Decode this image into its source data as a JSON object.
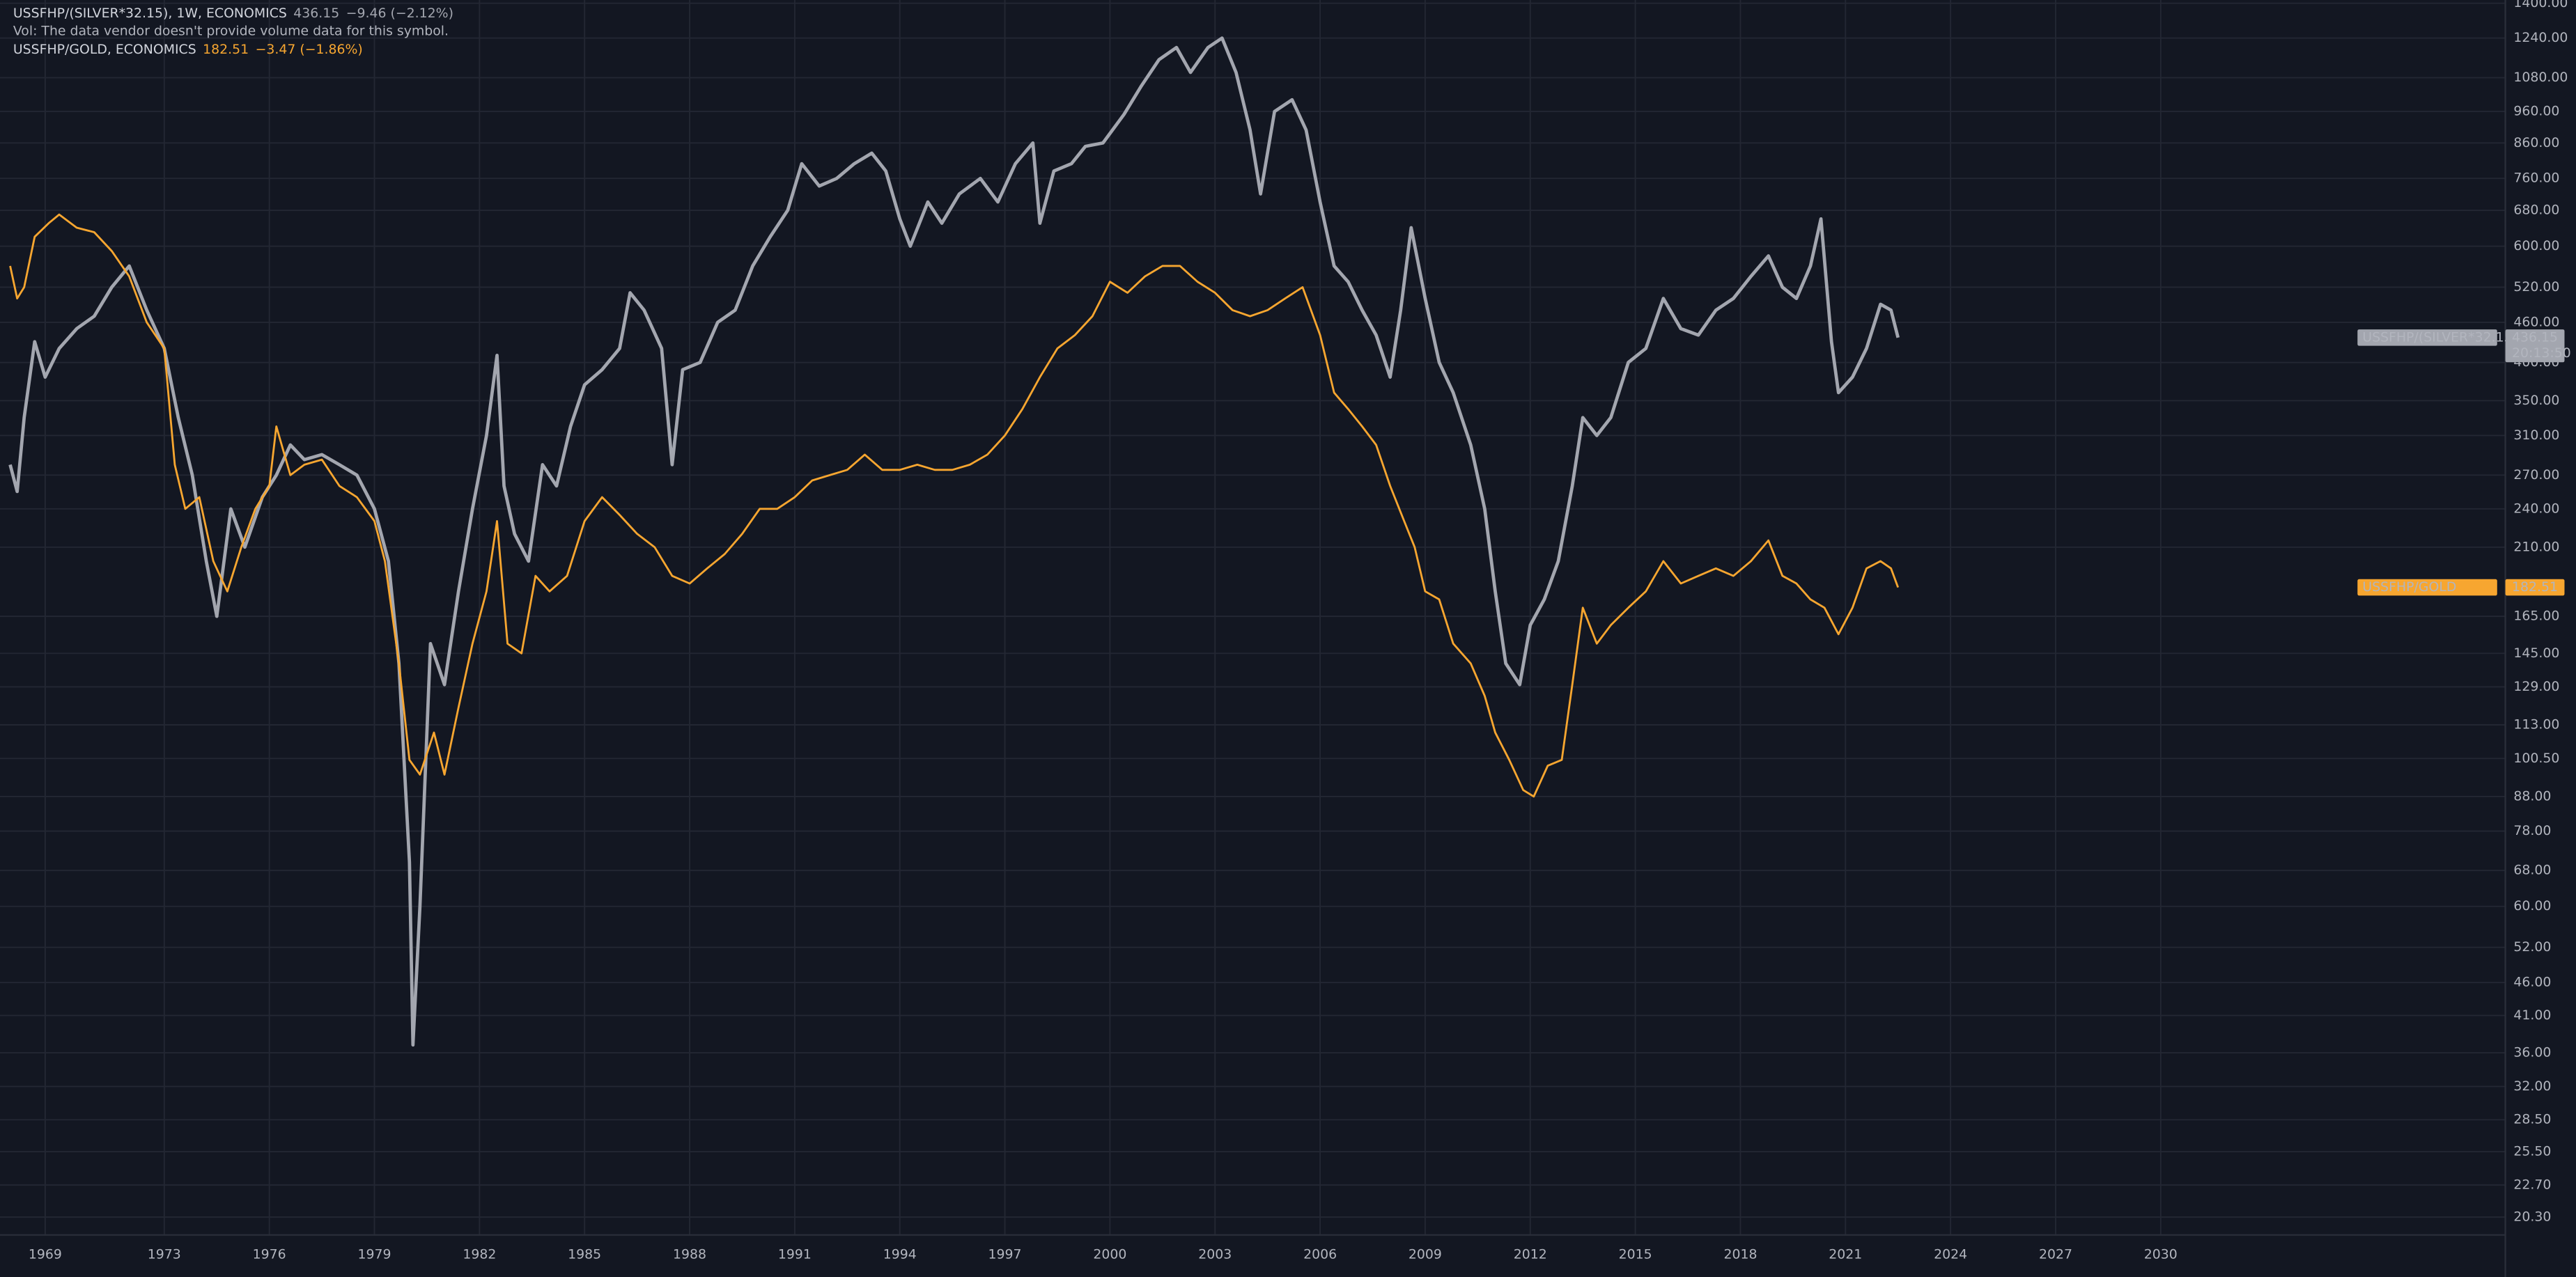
{
  "chart_data": {
    "type": "line",
    "log_scale": true,
    "grid": true,
    "header": {
      "vol_note": "Vol: The data vendor doesn't provide volume data for this symbol."
    },
    "xlim": [
      1968.31,
      2039.84
    ],
    "xticks": [
      {
        "value": 1969.6,
        "label": "1969"
      },
      1973,
      1976,
      1979,
      1982,
      1985,
      1988,
      1991,
      1994,
      1997,
      2000,
      2003,
      2006,
      2009,
      2012,
      2015,
      2018,
      2021,
      2024,
      2027,
      2030
    ],
    "ylim": [
      19.07,
      1416
    ],
    "yticks": [
      {
        "value": 20.3,
        "label": "20.30"
      },
      {
        "value": 22.7,
        "label": "22.70"
      },
      {
        "value": 25.5,
        "label": "25.50"
      },
      {
        "value": 28.5,
        "label": "28.50"
      },
      {
        "value": 32,
        "label": "32.00"
      },
      {
        "value": 36,
        "label": "36.00"
      },
      {
        "value": 41,
        "label": "41.00"
      },
      {
        "value": 46,
        "label": "46.00"
      },
      {
        "value": 52,
        "label": "52.00"
      },
      {
        "value": 60,
        "label": "60.00"
      },
      {
        "value": 68,
        "label": "68.00"
      },
      {
        "value": 78,
        "label": "78.00"
      },
      {
        "value": 88,
        "label": "88.00"
      },
      {
        "value": 100.5,
        "label": "100.50"
      },
      {
        "value": 113,
        "label": "113.00"
      },
      {
        "value": 129,
        "label": "129.00"
      },
      {
        "value": 145,
        "label": "145.00"
      },
      {
        "value": 165,
        "label": "165.00"
      },
      {
        "value": 210,
        "label": "210.00"
      },
      {
        "value": 240,
        "label": "240.00"
      },
      {
        "value": 270,
        "label": "270.00"
      },
      {
        "value": 310,
        "label": "310.00"
      },
      {
        "value": 350,
        "label": "350.00"
      },
      {
        "value": 400,
        "label": "400.00"
      },
      {
        "value": 460,
        "label": "460.00"
      },
      {
        "value": 520,
        "label": "520.00"
      },
      {
        "value": 600,
        "label": "600.00"
      },
      {
        "value": 680,
        "label": "680.00"
      },
      {
        "value": 760,
        "label": "760.00"
      },
      {
        "value": 860,
        "label": "860.00"
      },
      {
        "value": 960,
        "label": "960.00"
      },
      {
        "value": 1080,
        "label": "1080.00"
      },
      {
        "value": 1240,
        "label": "1240.00"
      },
      {
        "value": 1400,
        "label": "1400.00"
      }
    ],
    "series": [
      {
        "name": "USSFHP/(SILVER*32.15)",
        "legend_label": "USSFHP/(SILVER*32.15), 1W, ECONOMICS",
        "change": "−9.46 (−2.12%)",
        "countdown": "20:13:50",
        "color": "#a3a6af",
        "x": [
          1968.6,
          1968.8,
          1969.0,
          1969.3,
          1969.6,
          1970.0,
          1970.5,
          1971.0,
          1971.5,
          1972.0,
          1972.5,
          1973.0,
          1973.4,
          1973.8,
          1974.2,
          1974.5,
          1974.9,
          1975.3,
          1975.8,
          1976.2,
          1976.6,
          1977.0,
          1977.5,
          1978.0,
          1978.5,
          1979.0,
          1979.4,
          1979.7,
          1980.0,
          1980.1,
          1980.3,
          1980.6,
          1981.0,
          1981.4,
          1981.8,
          1982.2,
          1982.5,
          1982.7,
          1983.0,
          1983.4,
          1983.8,
          1984.2,
          1984.6,
          1985.0,
          1985.5,
          1986.0,
          1986.3,
          1986.7,
          1987.2,
          1987.5,
          1987.8,
          1988.3,
          1988.8,
          1989.3,
          1989.8,
          1990.3,
          1990.8,
          1991.2,
          1991.7,
          1992.2,
          1992.7,
          1993.2,
          1993.6,
          1994.0,
          1994.3,
          1994.8,
          1995.2,
          1995.7,
          1996.3,
          1996.8,
          1997.3,
          1997.8,
          1998.0,
          1998.4,
          1998.9,
          1999.3,
          1999.8,
          2000.4,
          2000.9,
          2001.4,
          2001.9,
          2002.3,
          2002.8,
          2003.2,
          2003.6,
          2004.0,
          2004.3,
          2004.7,
          2005.2,
          2005.6,
          2006.0,
          2006.4,
          2006.8,
          2007.2,
          2007.6,
          2008.0,
          2008.3,
          2008.6,
          2009.0,
          2009.4,
          2009.8,
          2010.3,
          2010.7,
          2011.0,
          2011.3,
          2011.7,
          2012.0,
          2012.4,
          2012.8,
          2013.2,
          2013.5,
          2013.9,
          2014.3,
          2014.8,
          2015.3,
          2015.8,
          2016.3,
          2016.8,
          2017.3,
          2017.8,
          2018.3,
          2018.8,
          2019.2,
          2019.6,
          2020.0,
          2020.3,
          2020.6,
          2020.8,
          2021.2,
          2021.6,
          2022.0,
          2022.3,
          2022.5
        ],
        "values": [
          280,
          255,
          330,
          430,
          380,
          420,
          450,
          470,
          520,
          560,
          480,
          420,
          330,
          270,
          200,
          165,
          240,
          210,
          250,
          270,
          300,
          285,
          290,
          280,
          270,
          240,
          200,
          140,
          70,
          37,
          60,
          150,
          130,
          180,
          240,
          310,
          410,
          260,
          220,
          200,
          280,
          260,
          320,
          370,
          390,
          420,
          510,
          480,
          420,
          280,
          390,
          400,
          460,
          480,
          560,
          620,
          680,
          800,
          740,
          760,
          800,
          830,
          780,
          660,
          600,
          700,
          650,
          720,
          760,
          700,
          800,
          860,
          650,
          780,
          800,
          850,
          860,
          950,
          1050,
          1150,
          1200,
          1100,
          1200,
          1240,
          1100,
          900,
          720,
          960,
          1000,
          900,
          700,
          560,
          530,
          480,
          440,
          380,
          480,
          640,
          500,
          400,
          360,
          300,
          240,
          180,
          140,
          130,
          160,
          175,
          200,
          260,
          330,
          310,
          330,
          400,
          420,
          500,
          450,
          440,
          480,
          500,
          540,
          580,
          520,
          500,
          560,
          660,
          430,
          360,
          380,
          420,
          490,
          480,
          436.15
        ]
      },
      {
        "name": "USSFHP/GOLD",
        "legend_label": "USSFHP/GOLD, ECONOMICS",
        "change": "−3.47 (−1.86%)",
        "color": "#f7a630",
        "x": [
          1968.6,
          1968.8,
          1969.0,
          1969.3,
          1969.7,
          1970.0,
          1970.5,
          1971.0,
          1971.5,
          1972.0,
          1972.5,
          1973.0,
          1973.3,
          1973.6,
          1974.0,
          1974.4,
          1974.8,
          1975.2,
          1975.6,
          1976.0,
          1976.2,
          1976.6,
          1977.0,
          1977.5,
          1978.0,
          1978.5,
          1979.0,
          1979.3,
          1979.7,
          1980.0,
          1980.3,
          1980.7,
          1981.0,
          1981.4,
          1981.8,
          1982.2,
          1982.5,
          1982.8,
          1983.2,
          1983.6,
          1984.0,
          1984.5,
          1985.0,
          1985.5,
          1986.0,
          1986.5,
          1987.0,
          1987.5,
          1988.0,
          1988.5,
          1989.0,
          1989.5,
          1990.0,
          1990.5,
          1991.0,
          1991.5,
          1992.0,
          1992.5,
          1993.0,
          1993.5,
          1994.0,
          1994.5,
          1995.0,
          1995.5,
          1996.0,
          1996.5,
          1997.0,
          1997.5,
          1998.0,
          1998.5,
          1999.0,
          1999.5,
          2000.0,
          2000.5,
          2001.0,
          2001.5,
          2002.0,
          2002.5,
          2003.0,
          2003.5,
          2004.0,
          2004.5,
          2005.0,
          2005.5,
          2006.0,
          2006.4,
          2006.8,
          2007.2,
          2007.6,
          2008.0,
          2008.4,
          2008.7,
          2009.0,
          2009.4,
          2009.8,
          2010.3,
          2010.7,
          2011.0,
          2011.4,
          2011.8,
          2012.1,
          2012.5,
          2012.9,
          2013.2,
          2013.5,
          2013.9,
          2014.3,
          2014.8,
          2015.3,
          2015.8,
          2016.3,
          2016.8,
          2017.3,
          2017.8,
          2018.3,
          2018.8,
          2019.2,
          2019.6,
          2020.0,
          2020.4,
          2020.8,
          2021.2,
          2021.6,
          2022.0,
          2022.3,
          2022.5
        ],
        "values": [
          560,
          500,
          520,
          620,
          650,
          670,
          640,
          630,
          590,
          540,
          460,
          420,
          280,
          240,
          250,
          200,
          180,
          210,
          240,
          260,
          320,
          270,
          280,
          285,
          260,
          250,
          230,
          200,
          140,
          100,
          95,
          110,
          95,
          120,
          150,
          180,
          230,
          150,
          145,
          190,
          180,
          190,
          230,
          250,
          235,
          220,
          210,
          190,
          185,
          195,
          205,
          220,
          240,
          240,
          250,
          265,
          270,
          275,
          290,
          275,
          275,
          280,
          275,
          275,
          280,
          290,
          310,
          340,
          380,
          420,
          440,
          470,
          530,
          510,
          540,
          560,
          560,
          530,
          510,
          480,
          470,
          480,
          500,
          520,
          440,
          360,
          340,
          320,
          300,
          260,
          230,
          210,
          180,
          175,
          150,
          140,
          125,
          110,
          100,
          90,
          88,
          98,
          100,
          130,
          170,
          150,
          160,
          170,
          180,
          200,
          185,
          190,
          195,
          190,
          200,
          215,
          190,
          185,
          175,
          170,
          155,
          170,
          195,
          200,
          195,
          182.51
        ]
      }
    ]
  }
}
